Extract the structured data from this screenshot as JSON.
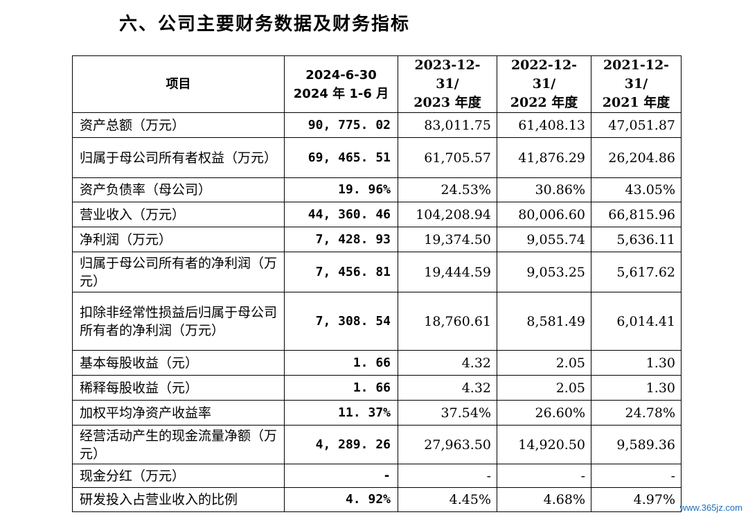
{
  "heading": "六、公司主要财务数据及财务指标",
  "columns": {
    "item": "项目",
    "c1_line1": "2024-6-30",
    "c1_line2": "2024 年 1-6 月",
    "c2_line1": "2023-12-31/",
    "c2_line2": "2023 年度",
    "c3_line1": "2022-12-31/",
    "c3_line2": "2022 年度",
    "c4_line1": "2021-12-31/",
    "c4_line2": "2021 年度"
  },
  "rows": [
    {
      "label": "资产总额（万元）",
      "v1": "90, 775. 02",
      "v2": "83,011.75",
      "v3": "61,408.13",
      "v4": "47,051.87"
    },
    {
      "label": "归属于母公司所有者权益（万元）",
      "v1": "69, 465. 51",
      "v2": "61,705.57",
      "v3": "41,876.29",
      "v4": "26,204.86"
    },
    {
      "label": "资产负债率（母公司）",
      "v1": "19. 96%",
      "v2": "24.53%",
      "v3": "30.86%",
      "v4": "43.05%"
    },
    {
      "label": "营业收入（万元）",
      "v1": "44, 360. 46",
      "v2": "104,208.94",
      "v3": "80,006.60",
      "v4": "66,815.96"
    },
    {
      "label": "净利润（万元）",
      "v1": "7, 428. 93",
      "v2": "19,374.50",
      "v3": "9,055.74",
      "v4": "5,636.11"
    },
    {
      "label": "归属于母公司所有者的净利润（万元）",
      "v1": "7, 456. 81",
      "v2": "19,444.59",
      "v3": "9,053.25",
      "v4": "5,617.62"
    },
    {
      "label": "扣除非经常性损益后归属于母公司所有者的净利润（万元）",
      "v1": "7, 308. 54",
      "v2": "18,760.61",
      "v3": "8,581.49",
      "v4": "6,014.41"
    },
    {
      "label": "基本每股收益（元）",
      "v1": "1. 66",
      "v2": "4.32",
      "v3": "2.05",
      "v4": "1.30"
    },
    {
      "label": "稀释每股收益（元）",
      "v1": "1. 66",
      "v2": "4.32",
      "v3": "2.05",
      "v4": "1.30"
    },
    {
      "label": "加权平均净资产收益率",
      "v1": "11. 37%",
      "v2": "37.54%",
      "v3": "26.60%",
      "v4": "24.78%"
    },
    {
      "label": "经营活动产生的现金流量净额（万元）",
      "v1": "4, 289. 26",
      "v2": "27,963.50",
      "v3": "14,920.50",
      "v4": "9,589.36"
    },
    {
      "label": "现金分红（万元）",
      "v1": "-",
      "v2": "-",
      "v3": "-",
      "v4": "-"
    },
    {
      "label": "研发投入占营业收入的比例",
      "v1": "4. 92%",
      "v2": "4.45%",
      "v3": "4.68%",
      "v4": "4.97%"
    }
  ],
  "watermark": "www.365jz.com"
}
